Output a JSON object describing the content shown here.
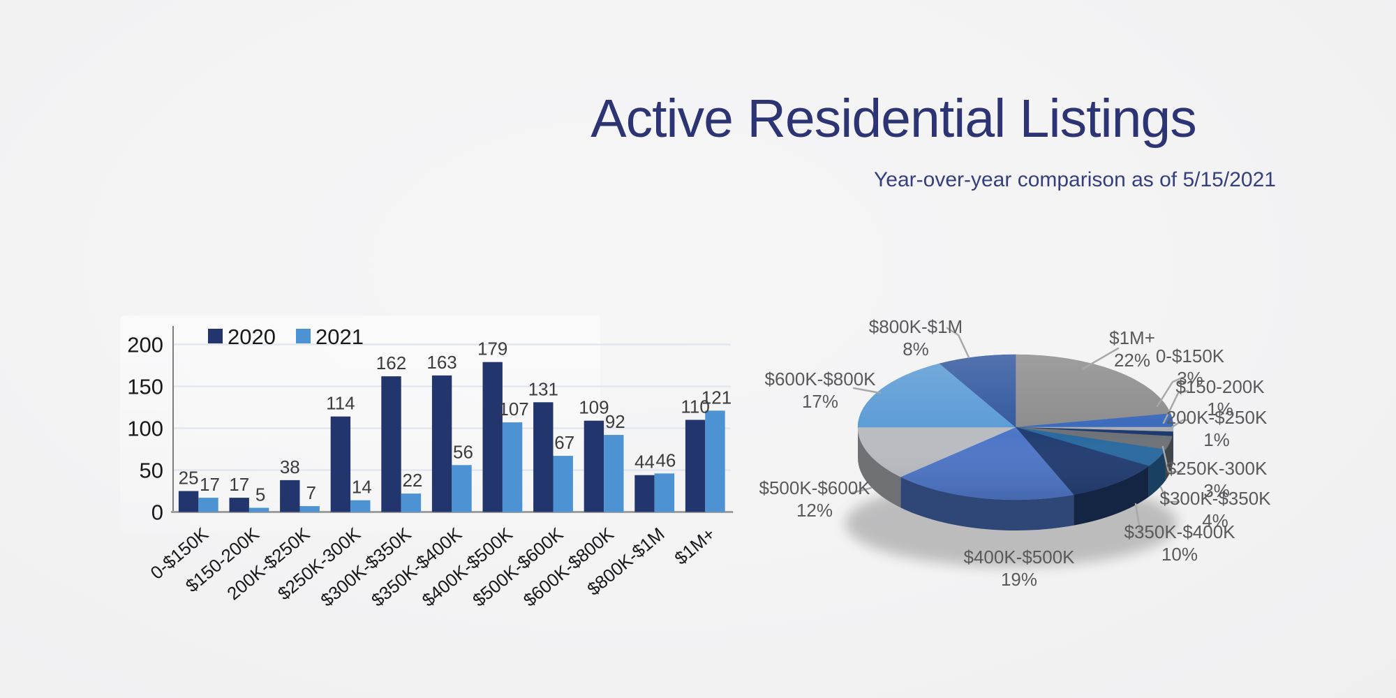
{
  "header": {
    "title": "Active Residential Listings",
    "subtitle": "Year-over-year comparison as of 5/15/2021"
  },
  "chart_data": [
    {
      "type": "bar",
      "title": "",
      "categories": [
        "0-$150K",
        "$150-200K",
        "200K-$250K",
        "$250K-300K",
        "$300K-$350K",
        "$350K-$400K",
        "$400K-$500K",
        "$500K-$600K",
        "$600K-$800K",
        "$800K-$1M",
        "$1M+"
      ],
      "series": [
        {
          "name": "2020",
          "color": "#22356C",
          "values": [
            25,
            17,
            38,
            114,
            162,
            163,
            179,
            131,
            109,
            44,
            110
          ]
        },
        {
          "name": "2021",
          "color": "#4D92D3",
          "values": [
            17,
            5,
            7,
            14,
            22,
            56,
            107,
            67,
            92,
            46,
            121
          ]
        }
      ],
      "ylim": [
        0,
        200
      ],
      "yticks": [
        0,
        50,
        100,
        150,
        200
      ],
      "grid": true,
      "legend_position": "top-left",
      "bar_value_labels": true,
      "gridline_color": "#dde3ef",
      "axis_color": "#7d7d7d",
      "baseline_color": "#9e9e9e",
      "tick_label_color": "#17181a",
      "value_label_color": "#3c3c3c"
    },
    {
      "type": "pie",
      "style": "3d",
      "start_angle_deg_from_top": 0,
      "direction": "clockwise",
      "label_color": "#59595b",
      "leader_color": "#a8a8a8",
      "slices": [
        {
          "label": "$1M+",
          "pct": 22,
          "color": "#8C8C8C"
        },
        {
          "label": "0-$150K",
          "pct": 3,
          "color": "#3A69BB"
        },
        {
          "label": "$150-200K",
          "pct": 1,
          "color": "#A9ADB3"
        },
        {
          "label": "200K-$250K",
          "pct": 1,
          "color": "#1E3A6E"
        },
        {
          "label": "$250K-300K",
          "pct": 3,
          "color": "#6F7276"
        },
        {
          "label": "$300K-$350K",
          "pct": 4,
          "color": "#2A6AA0"
        },
        {
          "label": "$350K-$400K",
          "pct": 10,
          "color": "#223D72"
        },
        {
          "label": "$400K-$500K",
          "pct": 19,
          "color": "#4E76C7"
        },
        {
          "label": "$500K-$600K",
          "pct": 12,
          "color": "#B9BCC1"
        },
        {
          "label": "$600K-$800K",
          "pct": 17,
          "color": "#5B9BD5"
        },
        {
          "label": "$800K-$1M",
          "pct": 8,
          "color": "#32589E"
        }
      ]
    }
  ]
}
